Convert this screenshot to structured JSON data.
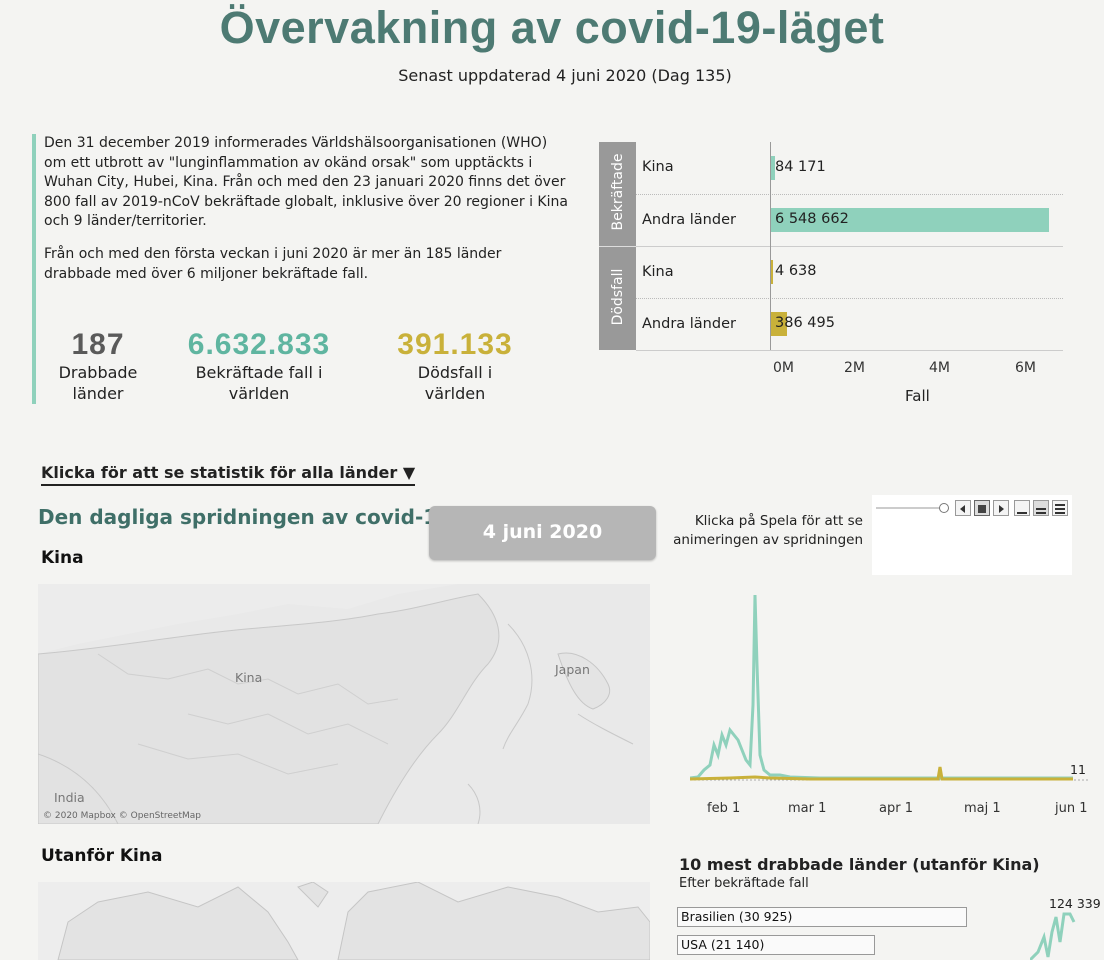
{
  "header": {
    "title": "Övervakning av covid-19-läget",
    "subtitle": "Senast uppdaterad 4 juni 2020 (Dag 135)"
  },
  "intro": {
    "p1": "Den 31 december 2019 informerades Världshälsoorganisationen (WHO) om ett utbrott av \"lunginflammation av okänd orsak\" som upptäckts i Wuhan City, Hubei, Kina. Från och med den 23 januari 2020 finns det över 800 fall av 2019-nCoV bekräftade globalt, inklusive över 20 regioner i Kina och 9 länder/territorier.",
    "p2": "Från och med den första veckan i juni 2020 är mer än 185 länder drabbade med över 6 miljoner bekräftade fall."
  },
  "kpis": [
    {
      "value": "187",
      "label1": "Drabbade",
      "label2": "länder",
      "color": "#5a5a5a"
    },
    {
      "value": "6.632.833",
      "label1": "Bekräftade fall i",
      "label2": "världen",
      "color": "#5fb5a0"
    },
    {
      "value": "391.133",
      "label1": "Dödsfall i",
      "label2": "världen",
      "color": "#c9b13a"
    }
  ],
  "bars": {
    "groups": [
      {
        "name": "Bekräftade",
        "rows": [
          {
            "label": "Kina",
            "value_text": "84 171",
            "value": 84171
          },
          {
            "label": "Andra länder",
            "value_text": "6 548 662",
            "value": 6548662
          }
        ]
      },
      {
        "name": "Dödsfall",
        "rows": [
          {
            "label": "Kina",
            "value_text": "4 638",
            "value": 4638
          },
          {
            "label": "Andra länder",
            "value_text": "386 495",
            "value": 386495
          }
        ]
      }
    ],
    "ticks": [
      "0M",
      "2M",
      "4M",
      "6M"
    ],
    "xlabel": "Fall",
    "colors": {
      "confirmed": "#8fd1bc",
      "deaths": "#c9b13a"
    }
  },
  "link": {
    "label": "Klicka för att se statistik för alla länder ▼"
  },
  "daily": {
    "title": "Den dagliga spridningen av covid-19",
    "date_button": "4 juni 2020",
    "play_hint_line1": "Klicka på Spela för att se",
    "play_hint_line2": "animeringen av spridningen"
  },
  "china": {
    "heading": "Kina",
    "map_labels": {
      "china": "Kina",
      "japan": "Japan",
      "india": "India"
    },
    "attribution": "© 2020 Mapbox © OpenStreetMap",
    "line_end_label": "11",
    "x_ticks": [
      "feb 1",
      "mar 1",
      "apr 1",
      "maj 1",
      "jun 1"
    ]
  },
  "outside": {
    "heading": "Utanför Kina",
    "top10_title": "10 mest drabbade länder (utanför Kina)",
    "top10_subtitle": "Efter bekräftade fall",
    "top10": [
      {
        "label": "Brasilien (30 925)",
        "value": 30925
      },
      {
        "label": "USA (21 140)",
        "value": 21140
      }
    ],
    "line_end_label": "124 339"
  }
}
